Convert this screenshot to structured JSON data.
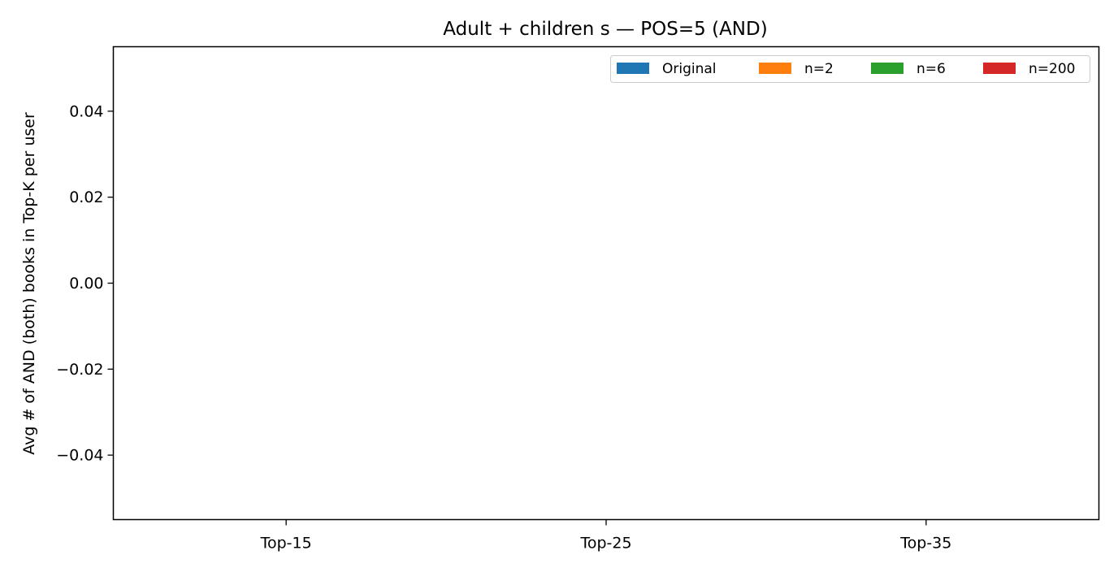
{
  "chart_data": {
    "type": "bar",
    "title": "Adult + children s — POS=5 (AND)",
    "xlabel": "",
    "ylabel": "Avg # of AND (both) books in Top-K per user",
    "categories": [
      "Top-15",
      "Top-25",
      "Top-35"
    ],
    "series": [
      {
        "name": "Original",
        "color": "#1f77b4",
        "values": [
          0,
          0,
          0
        ]
      },
      {
        "name": "n=2",
        "color": "#ff7f0e",
        "values": [
          0,
          0,
          0
        ]
      },
      {
        "name": "n=6",
        "color": "#2ca02c",
        "values": [
          0,
          0,
          0
        ]
      },
      {
        "name": "n=200",
        "color": "#d62728",
        "values": [
          0,
          0,
          0
        ]
      }
    ],
    "ylim": [
      -0.055,
      0.055
    ],
    "yticks": [
      0.04,
      0.02,
      0.0,
      -0.02,
      -0.04
    ],
    "ytick_labels": [
      "0.04",
      "0.02",
      "0.00",
      "−0.02",
      "−0.04"
    ],
    "legend": {
      "placement": "top-right",
      "ncol": 4
    },
    "grid": false
  }
}
